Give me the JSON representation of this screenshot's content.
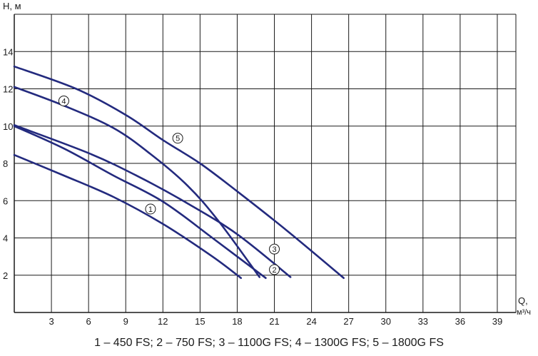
{
  "chart_data": {
    "type": "line",
    "xlabel": "Q, м³/ч",
    "xlabel_main": "Q,",
    "xlabel_unit": "м³/ч",
    "ylabel": "H, м",
    "xlim": [
      0,
      40.5
    ],
    "ylim": [
      0,
      16
    ],
    "x_ticks": [
      3,
      6,
      9,
      12,
      15,
      18,
      21,
      24,
      27,
      30,
      33,
      36,
      39
    ],
    "y_ticks": [
      2,
      4,
      6,
      8,
      10,
      12,
      14
    ],
    "grid": true,
    "series": [
      {
        "name": "1",
        "label": "1 – 450 FS",
        "points": [
          [
            0,
            8.45
          ],
          [
            4,
            7.35
          ],
          [
            8,
            6.2
          ],
          [
            12,
            4.75
          ],
          [
            16,
            3.0
          ],
          [
            18.3,
            1.85
          ]
        ],
        "marker_at": [
          11,
          5.55
        ]
      },
      {
        "name": "2",
        "label": "2 – 750 FS",
        "points": [
          [
            0,
            10.0
          ],
          [
            4,
            8.8
          ],
          [
            8,
            7.35
          ],
          [
            12,
            5.95
          ],
          [
            16,
            4.0
          ],
          [
            20.3,
            1.85
          ]
        ],
        "marker_at": [
          21,
          2.3
        ]
      },
      {
        "name": "3",
        "label": "3 – 1100G FS",
        "points": [
          [
            0,
            10.05
          ],
          [
            6,
            8.55
          ],
          [
            10,
            7.3
          ],
          [
            14,
            5.85
          ],
          [
            18,
            4.2
          ],
          [
            22.3,
            1.9
          ]
        ],
        "marker_at": [
          21,
          3.4
        ]
      },
      {
        "name": "4",
        "label": "4 – 1300G FS",
        "points": [
          [
            0,
            12.1
          ],
          [
            4,
            11.1
          ],
          [
            8,
            9.9
          ],
          [
            11,
            8.5
          ],
          [
            14,
            6.8
          ],
          [
            16.5,
            4.9
          ],
          [
            19.8,
            1.9
          ]
        ],
        "marker_at": [
          4,
          11.35
        ]
      },
      {
        "name": "5",
        "label": "5 – 1800G FS",
        "points": [
          [
            0,
            13.2
          ],
          [
            5,
            12.0
          ],
          [
            9,
            10.6
          ],
          [
            12,
            9.25
          ],
          [
            15,
            8.0
          ],
          [
            18,
            6.5
          ],
          [
            22,
            4.4
          ],
          [
            26.6,
            1.85
          ]
        ],
        "marker_at": [
          13.2,
          9.35
        ]
      }
    ],
    "colors": {
      "series": "#232a7e",
      "grid": "#1a1a1a",
      "axis": "#1a1a1a"
    }
  },
  "caption": "1 – 450 FS; 2 – 750 FS; 3 – 1100G FS; 4 – 1300G FS; 5 – 1800G FS"
}
